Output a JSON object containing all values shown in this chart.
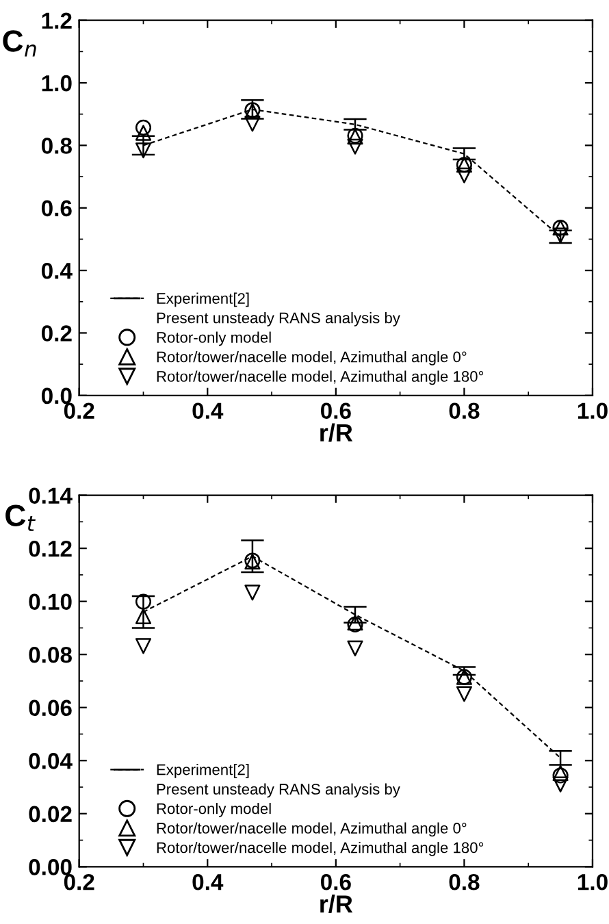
{
  "chart_data": [
    {
      "type": "line",
      "xlabel": "r/R",
      "ylabel": "C$_{n}$",
      "x": [
        0.3,
        0.47,
        0.63,
        0.8,
        0.95
      ],
      "xlim": [
        0.2,
        1.0
      ],
      "xticks": [
        0.2,
        0.4,
        0.6,
        0.8,
        {
          "value": 1.0,
          "label": "1.0"
        }
      ],
      "ylim": [
        0.0,
        1.2
      ],
      "yticks": [
        {
          "value": 0.0,
          "label": "0.0"
        },
        0.2,
        0.4,
        0.6,
        0.8,
        {
          "value": 1.0,
          "label": "1.0"
        },
        1.2
      ],
      "legend": "bottom left",
      "grid": false,
      "legend_title": "Present unsteady RANS analysis by",
      "series": [
        {
          "type": "line",
          "name": "Experiment[2]",
          "color": "#000000",
          "line_style": "dashed",
          "marker": "none",
          "values": [
            0.8,
            0.915,
            0.867,
            0.773,
            0.508
          ],
          "errors": [
            0.03,
            0.03,
            0.017,
            0.018,
            0.02
          ]
        },
        {
          "type": "scatter",
          "name": "Rotor-only model",
          "color": "#000000",
          "marker": "circle",
          "values": [
            0.857,
            0.913,
            0.831,
            0.738,
            0.537
          ]
        },
        {
          "type": "scatter",
          "name": "Rotor/tower/nacelle model, Azimuthal angle 0°",
          "color": "#000000",
          "marker": "triangle",
          "values": [
            0.84,
            0.91,
            0.828,
            0.738,
            0.537
          ]
        },
        {
          "type": "scatter",
          "name": "Rotor/tower/nacelle model, Azimuthal angle 180°",
          "color": "#000000",
          "marker": "triangle_down",
          "values": [
            0.784,
            0.869,
            0.796,
            0.704,
            0.512
          ]
        }
      ]
    },
    {
      "type": "line",
      "xlabel": "r/R",
      "ylabel": "C$_{t}$",
      "x": [
        0.3,
        0.47,
        0.63,
        0.8,
        0.95
      ],
      "xlim": [
        0.2,
        1.0
      ],
      "xticks": [
        0.2,
        0.4,
        0.6,
        0.8,
        {
          "value": 1.0,
          "label": "1.0"
        }
      ],
      "ylim": [
        0.0,
        0.14
      ],
      "yticks": [
        {
          "value": 0.0,
          "label": "0.00"
        },
        {
          "value": 0.02,
          "label": "0.02"
        },
        {
          "value": 0.04,
          "label": "0.04"
        },
        {
          "value": 0.06,
          "label": "0.06"
        },
        {
          "value": 0.08,
          "label": "0.08"
        },
        {
          "value": 0.1,
          "label": "0.10"
        },
        {
          "value": 0.12,
          "label": "0.12"
        },
        {
          "value": 0.14,
          "label": "0.14"
        }
      ],
      "legend": "bottom left",
      "grid": false,
      "legend_title": "Present unsteady RANS analysis by",
      "series": [
        {
          "type": "line",
          "name": "Experiment[2]",
          "color": "#000000",
          "line_style": "dashed",
          "marker": "none",
          "values": [
            0.096,
            0.117,
            0.095,
            0.0738,
            0.041
          ],
          "errors": [
            0.006,
            0.006,
            0.003,
            0.0015,
            0.0026
          ]
        },
        {
          "type": "scatter",
          "name": "Rotor-only model",
          "color": "#000000",
          "marker": "circle",
          "values": [
            0.0999,
            0.1154,
            0.0913,
            0.0715,
            0.0344
          ]
        },
        {
          "type": "scatter",
          "name": "Rotor/tower/nacelle model, Azimuthal angle 0°",
          "color": "#000000",
          "marker": "triangle",
          "values": [
            0.0944,
            0.115,
            0.092,
            0.0715,
            0.0353
          ]
        },
        {
          "type": "scatter",
          "name": "Rotor/tower/nacelle model, Azimuthal angle 180°",
          "color": "#000000",
          "marker": "triangle_down",
          "values": [
            0.0832,
            0.1033,
            0.0823,
            0.0651,
            0.031
          ]
        }
      ]
    }
  ]
}
